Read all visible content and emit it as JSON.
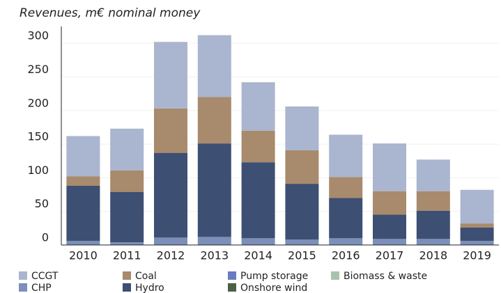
{
  "chart_data": {
    "type": "stacked_bar",
    "title": "Revenues, m€ nominal money",
    "categories": [
      "2010",
      "2011",
      "2012",
      "2013",
      "2014",
      "2015",
      "2016",
      "2017",
      "2018",
      "2019"
    ],
    "series": [
      {
        "name": "CHP",
        "color": "#7b8fb8",
        "values": [
          6,
          4,
          11,
          12,
          10,
          8,
          10,
          9,
          9,
          6
        ]
      },
      {
        "name": "Pump storage",
        "color": "#6a7cc0",
        "values": [
          0,
          0,
          0,
          0,
          0,
          0,
          0,
          0,
          0,
          0
        ]
      },
      {
        "name": "Onshore wind",
        "color": "#4a6148",
        "values": [
          0,
          0,
          0,
          0,
          0,
          0,
          0,
          0,
          0,
          0
        ]
      },
      {
        "name": "Biomass & waste",
        "color": "#a9c2ae",
        "values": [
          0,
          0,
          0,
          0,
          0,
          0,
          0,
          0,
          0,
          0
        ]
      },
      {
        "name": "Hydro",
        "color": "#3d4f72",
        "values": [
          82,
          75,
          126,
          139,
          113,
          83,
          60,
          36,
          42,
          20
        ]
      },
      {
        "name": "Coal",
        "color": "#a88a6c",
        "values": [
          14,
          32,
          66,
          69,
          47,
          50,
          31,
          35,
          29,
          6
        ]
      },
      {
        "name": "CCGT",
        "color": "#aab5cf",
        "values": [
          60,
          62,
          99,
          92,
          72,
          65,
          63,
          71,
          47,
          50
        ]
      }
    ],
    "ylim": [
      0,
      325
    ],
    "yticks": [
      0,
      50,
      100,
      150,
      200,
      250,
      300
    ],
    "grid": true
  }
}
